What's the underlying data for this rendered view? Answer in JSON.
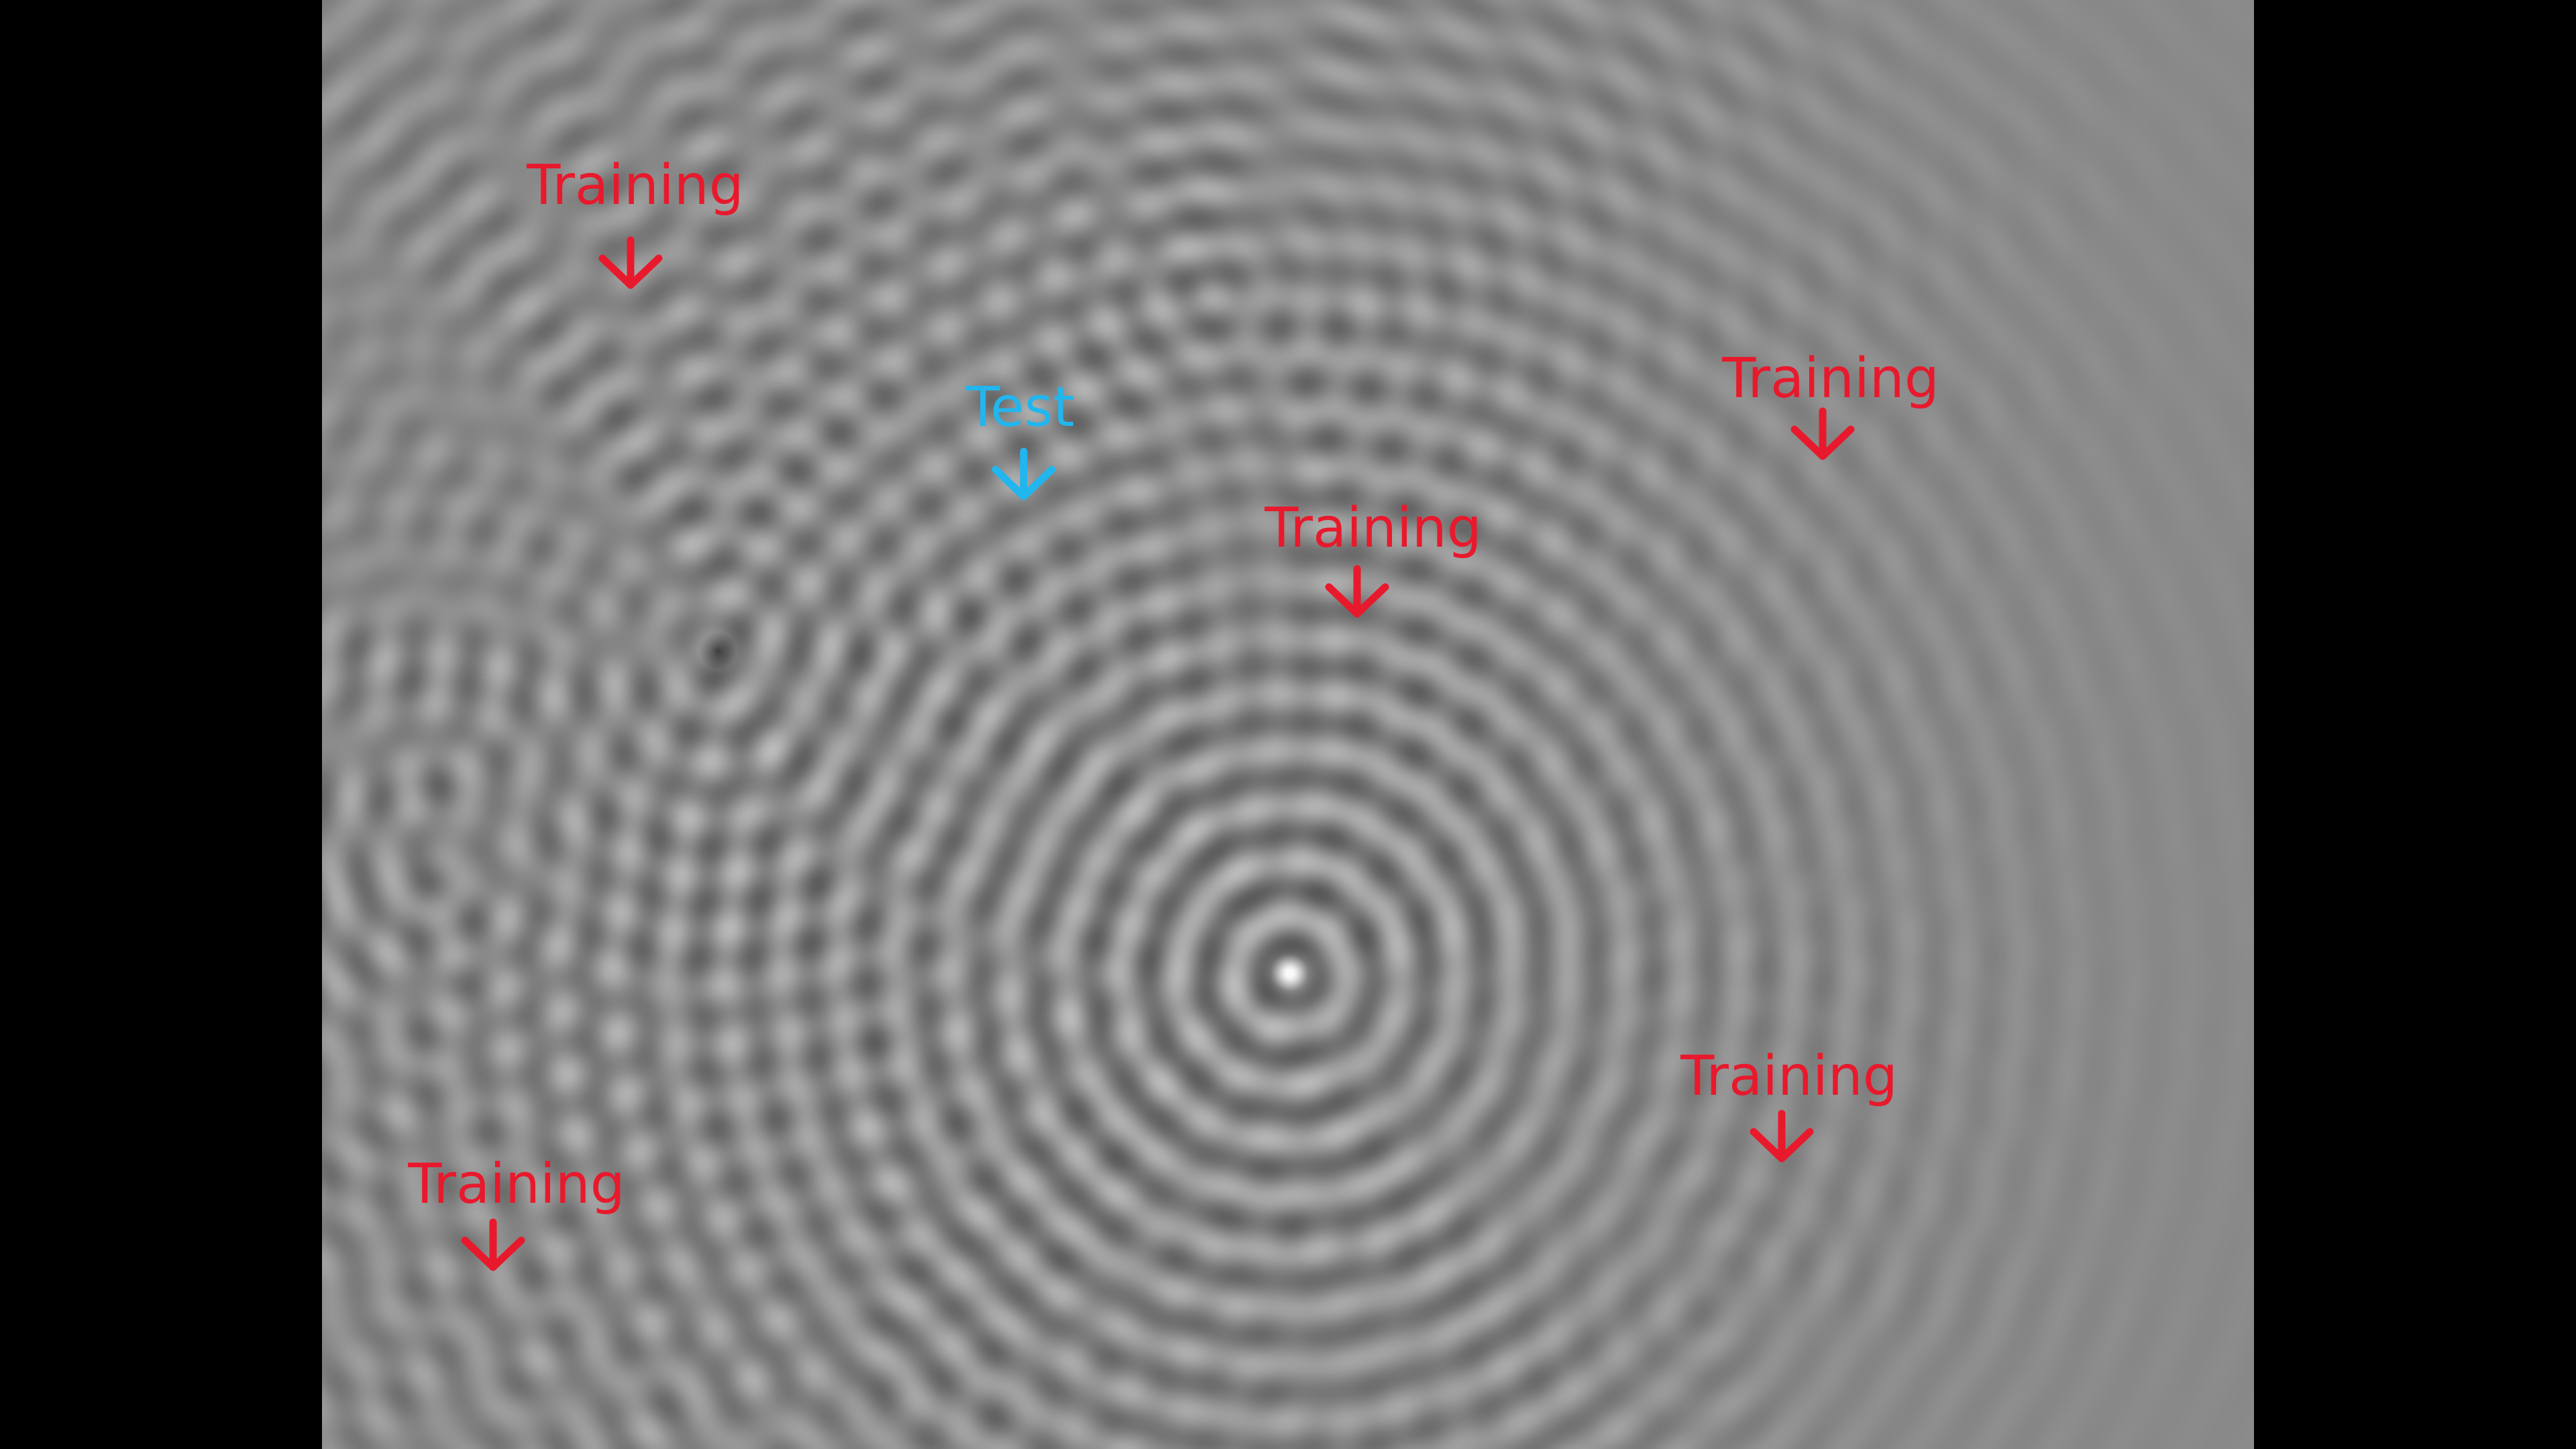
{
  "colors": {
    "training": "#e8192c",
    "test": "#21b6ee",
    "background": "#000000",
    "field_mid_gray": "#8a8a8a"
  },
  "icons": {
    "arrow": "down-arrow-icon"
  },
  "markers": [
    {
      "id": "training-1",
      "kind": "training",
      "label": "Training"
    },
    {
      "id": "test-1",
      "kind": "test",
      "label": "Test"
    },
    {
      "id": "training-2",
      "kind": "training",
      "label": "Training"
    },
    {
      "id": "training-3",
      "kind": "training",
      "label": "Training"
    },
    {
      "id": "training-4",
      "kind": "training",
      "label": "Training"
    },
    {
      "id": "training-5",
      "kind": "training",
      "label": "Training"
    }
  ]
}
